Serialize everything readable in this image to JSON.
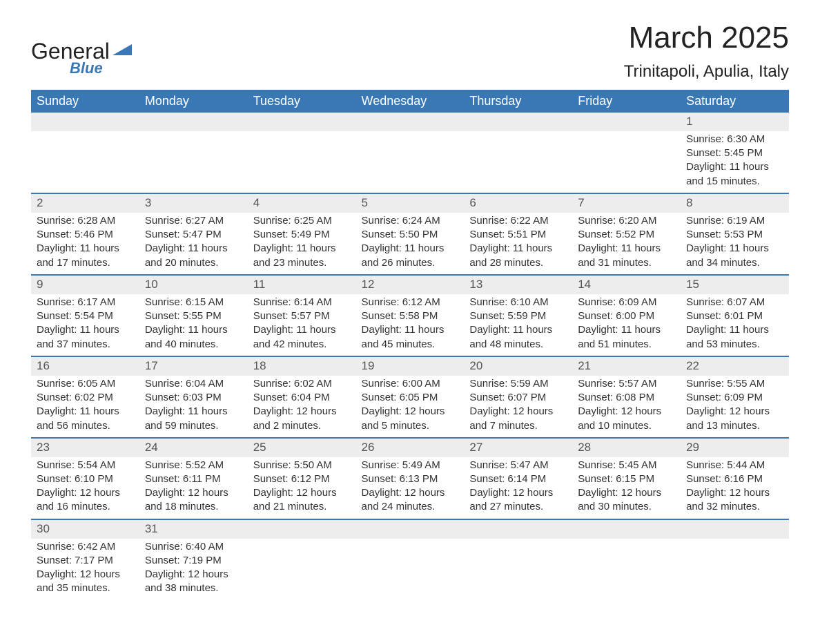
{
  "brand": {
    "name": "General",
    "sub": "Blue",
    "triangle_color": "#3a78b5"
  },
  "title": "March 2025",
  "location": "Trinitapoli, Apulia, Italy",
  "colors": {
    "header_bg": "#3a78b5",
    "header_text": "#ffffff",
    "daynum_bg": "#ededed",
    "border": "#3a78b5",
    "body_text": "#333333",
    "daynum_text": "#555555",
    "page_bg": "#ffffff"
  },
  "fonts": {
    "title_size": 44,
    "location_size": 24,
    "header_size": 18,
    "cell_size": 15,
    "daynum_size": 17
  },
  "weekdays": [
    "Sunday",
    "Monday",
    "Tuesday",
    "Wednesday",
    "Thursday",
    "Friday",
    "Saturday"
  ],
  "weeks": [
    [
      null,
      null,
      null,
      null,
      null,
      null,
      {
        "n": "1",
        "sr": "Sunrise: 6:30 AM",
        "ss": "Sunset: 5:45 PM",
        "d1": "Daylight: 11 hours",
        "d2": "and 15 minutes."
      }
    ],
    [
      {
        "n": "2",
        "sr": "Sunrise: 6:28 AM",
        "ss": "Sunset: 5:46 PM",
        "d1": "Daylight: 11 hours",
        "d2": "and 17 minutes."
      },
      {
        "n": "3",
        "sr": "Sunrise: 6:27 AM",
        "ss": "Sunset: 5:47 PM",
        "d1": "Daylight: 11 hours",
        "d2": "and 20 minutes."
      },
      {
        "n": "4",
        "sr": "Sunrise: 6:25 AM",
        "ss": "Sunset: 5:49 PM",
        "d1": "Daylight: 11 hours",
        "d2": "and 23 minutes."
      },
      {
        "n": "5",
        "sr": "Sunrise: 6:24 AM",
        "ss": "Sunset: 5:50 PM",
        "d1": "Daylight: 11 hours",
        "d2": "and 26 minutes."
      },
      {
        "n": "6",
        "sr": "Sunrise: 6:22 AM",
        "ss": "Sunset: 5:51 PM",
        "d1": "Daylight: 11 hours",
        "d2": "and 28 minutes."
      },
      {
        "n": "7",
        "sr": "Sunrise: 6:20 AM",
        "ss": "Sunset: 5:52 PM",
        "d1": "Daylight: 11 hours",
        "d2": "and 31 minutes."
      },
      {
        "n": "8",
        "sr": "Sunrise: 6:19 AM",
        "ss": "Sunset: 5:53 PM",
        "d1": "Daylight: 11 hours",
        "d2": "and 34 minutes."
      }
    ],
    [
      {
        "n": "9",
        "sr": "Sunrise: 6:17 AM",
        "ss": "Sunset: 5:54 PM",
        "d1": "Daylight: 11 hours",
        "d2": "and 37 minutes."
      },
      {
        "n": "10",
        "sr": "Sunrise: 6:15 AM",
        "ss": "Sunset: 5:55 PM",
        "d1": "Daylight: 11 hours",
        "d2": "and 40 minutes."
      },
      {
        "n": "11",
        "sr": "Sunrise: 6:14 AM",
        "ss": "Sunset: 5:57 PM",
        "d1": "Daylight: 11 hours",
        "d2": "and 42 minutes."
      },
      {
        "n": "12",
        "sr": "Sunrise: 6:12 AM",
        "ss": "Sunset: 5:58 PM",
        "d1": "Daylight: 11 hours",
        "d2": "and 45 minutes."
      },
      {
        "n": "13",
        "sr": "Sunrise: 6:10 AM",
        "ss": "Sunset: 5:59 PM",
        "d1": "Daylight: 11 hours",
        "d2": "and 48 minutes."
      },
      {
        "n": "14",
        "sr": "Sunrise: 6:09 AM",
        "ss": "Sunset: 6:00 PM",
        "d1": "Daylight: 11 hours",
        "d2": "and 51 minutes."
      },
      {
        "n": "15",
        "sr": "Sunrise: 6:07 AM",
        "ss": "Sunset: 6:01 PM",
        "d1": "Daylight: 11 hours",
        "d2": "and 53 minutes."
      }
    ],
    [
      {
        "n": "16",
        "sr": "Sunrise: 6:05 AM",
        "ss": "Sunset: 6:02 PM",
        "d1": "Daylight: 11 hours",
        "d2": "and 56 minutes."
      },
      {
        "n": "17",
        "sr": "Sunrise: 6:04 AM",
        "ss": "Sunset: 6:03 PM",
        "d1": "Daylight: 11 hours",
        "d2": "and 59 minutes."
      },
      {
        "n": "18",
        "sr": "Sunrise: 6:02 AM",
        "ss": "Sunset: 6:04 PM",
        "d1": "Daylight: 12 hours",
        "d2": "and 2 minutes."
      },
      {
        "n": "19",
        "sr": "Sunrise: 6:00 AM",
        "ss": "Sunset: 6:05 PM",
        "d1": "Daylight: 12 hours",
        "d2": "and 5 minutes."
      },
      {
        "n": "20",
        "sr": "Sunrise: 5:59 AM",
        "ss": "Sunset: 6:07 PM",
        "d1": "Daylight: 12 hours",
        "d2": "and 7 minutes."
      },
      {
        "n": "21",
        "sr": "Sunrise: 5:57 AM",
        "ss": "Sunset: 6:08 PM",
        "d1": "Daylight: 12 hours",
        "d2": "and 10 minutes."
      },
      {
        "n": "22",
        "sr": "Sunrise: 5:55 AM",
        "ss": "Sunset: 6:09 PM",
        "d1": "Daylight: 12 hours",
        "d2": "and 13 minutes."
      }
    ],
    [
      {
        "n": "23",
        "sr": "Sunrise: 5:54 AM",
        "ss": "Sunset: 6:10 PM",
        "d1": "Daylight: 12 hours",
        "d2": "and 16 minutes."
      },
      {
        "n": "24",
        "sr": "Sunrise: 5:52 AM",
        "ss": "Sunset: 6:11 PM",
        "d1": "Daylight: 12 hours",
        "d2": "and 18 minutes."
      },
      {
        "n": "25",
        "sr": "Sunrise: 5:50 AM",
        "ss": "Sunset: 6:12 PM",
        "d1": "Daylight: 12 hours",
        "d2": "and 21 minutes."
      },
      {
        "n": "26",
        "sr": "Sunrise: 5:49 AM",
        "ss": "Sunset: 6:13 PM",
        "d1": "Daylight: 12 hours",
        "d2": "and 24 minutes."
      },
      {
        "n": "27",
        "sr": "Sunrise: 5:47 AM",
        "ss": "Sunset: 6:14 PM",
        "d1": "Daylight: 12 hours",
        "d2": "and 27 minutes."
      },
      {
        "n": "28",
        "sr": "Sunrise: 5:45 AM",
        "ss": "Sunset: 6:15 PM",
        "d1": "Daylight: 12 hours",
        "d2": "and 30 minutes."
      },
      {
        "n": "29",
        "sr": "Sunrise: 5:44 AM",
        "ss": "Sunset: 6:16 PM",
        "d1": "Daylight: 12 hours",
        "d2": "and 32 minutes."
      }
    ],
    [
      {
        "n": "30",
        "sr": "Sunrise: 6:42 AM",
        "ss": "Sunset: 7:17 PM",
        "d1": "Daylight: 12 hours",
        "d2": "and 35 minutes."
      },
      {
        "n": "31",
        "sr": "Sunrise: 6:40 AM",
        "ss": "Sunset: 7:19 PM",
        "d1": "Daylight: 12 hours",
        "d2": "and 38 minutes."
      },
      null,
      null,
      null,
      null,
      null
    ]
  ]
}
